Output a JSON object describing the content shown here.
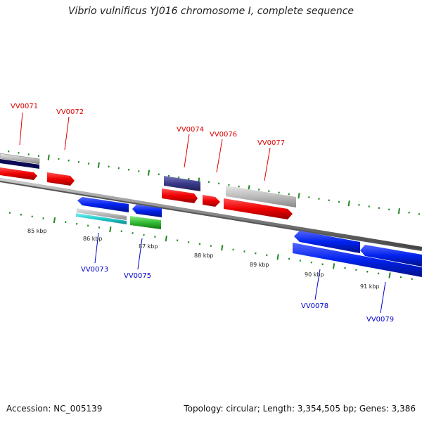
{
  "title": "Vibrio vulnificus YJ016 chromosome I, complete sequence",
  "footer": {
    "accession": "Accession: NC_005139",
    "summary": "Topology: circular; Length: 3,354,505 bp; Genes: 3,386"
  },
  "colors": {
    "forward_label": "#dd0000",
    "reverse_label": "#0000cc",
    "tick": "#228822",
    "red": "#ee0000",
    "blue": "#0022ee",
    "navy": "#3a3a8a",
    "gray": "#bbbbbb",
    "green": "#33bb33",
    "cyan": "#22cccc",
    "backbone": "#888888"
  },
  "scale_labels": [
    "85 kbp",
    "86 kbp",
    "87 kbp",
    "88 kbp",
    "89 kbp",
    "90 kbp",
    "91 kbp"
  ],
  "forward_gene_labels": [
    "VV0071",
    "VV0072",
    "VV0074",
    "VV0076",
    "VV0077"
  ],
  "reverse_gene_labels": [
    "VV0073",
    "VV0075",
    "VV0078",
    "VV0079"
  ]
}
